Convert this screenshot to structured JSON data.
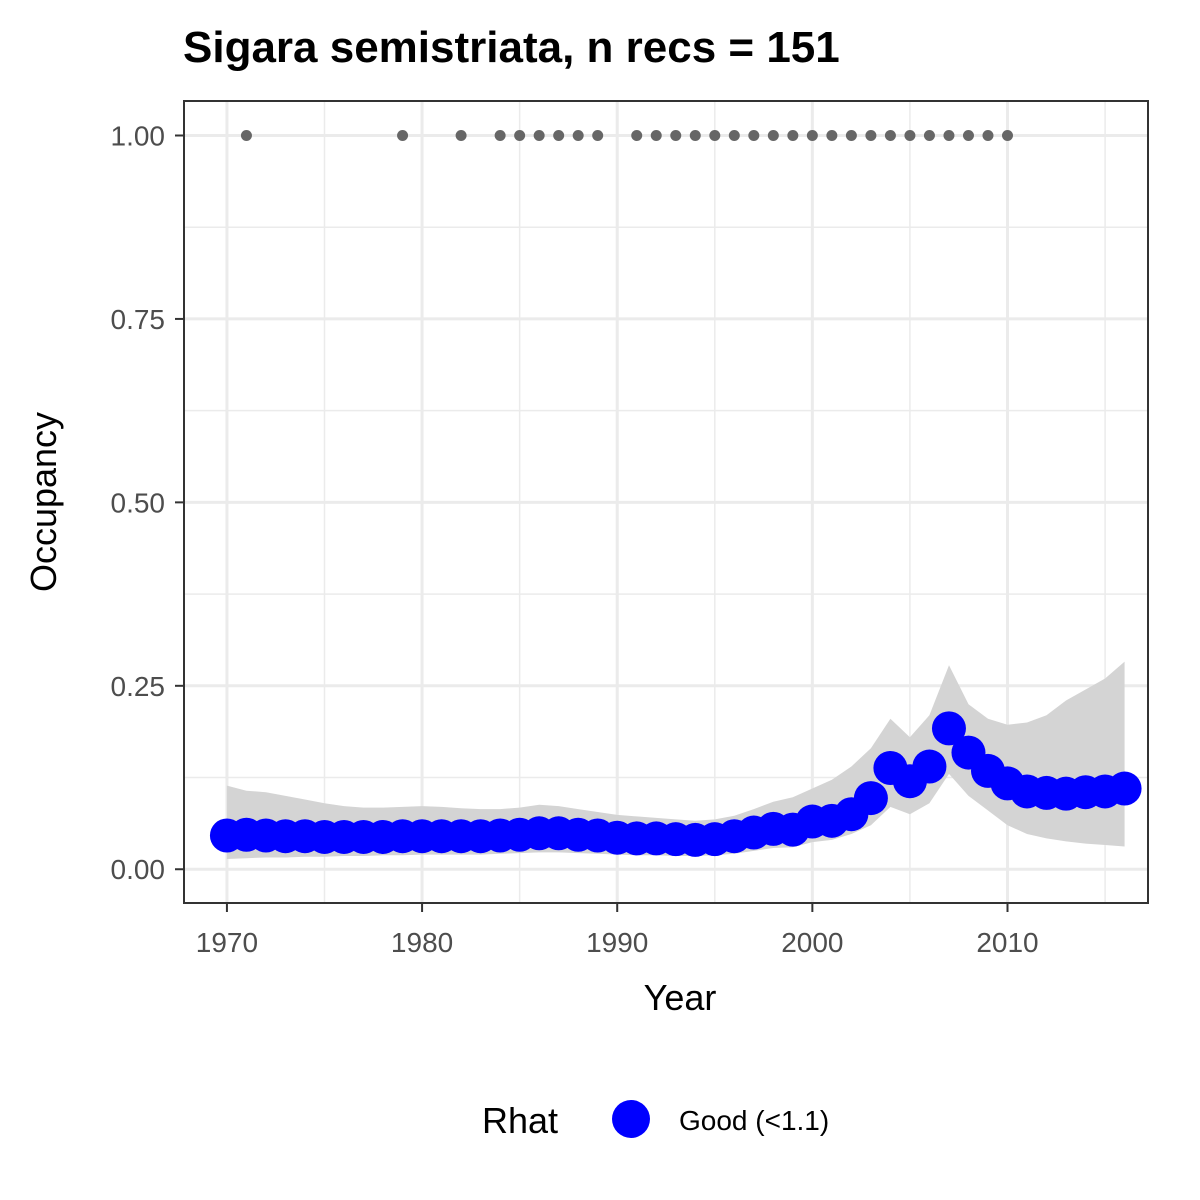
{
  "chart_data": {
    "type": "line",
    "title": "Sigara semistriata, n recs = 151",
    "xlabel": "Year",
    "ylabel": "Occupancy",
    "xlim": [
      1967.8,
      2017.2
    ],
    "ylim": [
      -0.046,
      1.047
    ],
    "x_ticks": [
      1970,
      1980,
      1990,
      2000,
      2010
    ],
    "y_ticks": [
      0.0,
      0.25,
      0.5,
      0.75,
      1.0
    ],
    "x_tick_labels": [
      "1970",
      "1980",
      "1990",
      "2000",
      "2010"
    ],
    "y_tick_labels": [
      "0.00",
      "0.25",
      "0.50",
      "0.75",
      "1.00"
    ],
    "grid": true,
    "legend": {
      "position": "bottom",
      "title": "Rhat",
      "entries": [
        {
          "label": "Good (<1.1)",
          "color": "#0000ff"
        }
      ]
    },
    "colors": {
      "series": "#0000ff",
      "ribbon": "#d4d4d4",
      "records": "#666666",
      "grid": "#ebebeb",
      "panel_border": "#333333"
    },
    "records_x": [
      1971,
      1979,
      1982,
      1984,
      1985,
      1986,
      1987,
      1988,
      1989,
      1991,
      1992,
      1993,
      1994,
      1995,
      1996,
      1997,
      1998,
      1999,
      2000,
      2001,
      2002,
      2003,
      2004,
      2005,
      2006,
      2007,
      2008,
      2009,
      2010
    ],
    "records_y": 1.0,
    "series": [
      {
        "x": [
          1970,
          1971,
          1972,
          1973,
          1974,
          1975,
          1976,
          1977,
          1978,
          1979,
          1980,
          1981,
          1982,
          1983,
          1984,
          1985,
          1986,
          1987,
          1988,
          1989,
          1990,
          1991,
          1992,
          1993,
          1994,
          1995,
          1996,
          1997,
          1998,
          1999,
          2000,
          2001,
          2002,
          2003,
          2004,
          2005,
          2006,
          2007,
          2008,
          2009,
          2010,
          2011,
          2012,
          2013,
          2014,
          2015,
          2016
        ],
        "values": [
          0.046,
          0.047,
          0.046,
          0.045,
          0.045,
          0.044,
          0.044,
          0.044,
          0.044,
          0.045,
          0.045,
          0.045,
          0.045,
          0.045,
          0.046,
          0.047,
          0.049,
          0.049,
          0.047,
          0.046,
          0.043,
          0.042,
          0.042,
          0.041,
          0.04,
          0.041,
          0.045,
          0.05,
          0.055,
          0.054,
          0.065,
          0.066,
          0.075,
          0.097,
          0.138,
          0.12,
          0.14,
          0.192,
          0.159,
          0.134,
          0.117,
          0.106,
          0.104,
          0.103,
          0.105,
          0.106,
          0.11
        ],
        "lower": [
          0.014,
          0.015,
          0.016,
          0.016,
          0.017,
          0.017,
          0.018,
          0.018,
          0.019,
          0.019,
          0.02,
          0.02,
          0.02,
          0.02,
          0.021,
          0.022,
          0.023,
          0.023,
          0.022,
          0.021,
          0.02,
          0.019,
          0.019,
          0.018,
          0.018,
          0.019,
          0.021,
          0.025,
          0.029,
          0.03,
          0.037,
          0.04,
          0.048,
          0.06,
          0.085,
          0.075,
          0.09,
          0.13,
          0.1,
          0.08,
          0.06,
          0.048,
          0.042,
          0.038,
          0.035,
          0.033,
          0.031
        ],
        "upper": [
          0.114,
          0.107,
          0.105,
          0.1,
          0.095,
          0.09,
          0.086,
          0.084,
          0.084,
          0.085,
          0.086,
          0.085,
          0.083,
          0.082,
          0.082,
          0.084,
          0.088,
          0.086,
          0.082,
          0.078,
          0.074,
          0.072,
          0.07,
          0.068,
          0.066,
          0.068,
          0.073,
          0.082,
          0.092,
          0.098,
          0.11,
          0.122,
          0.14,
          0.165,
          0.205,
          0.18,
          0.21,
          0.278,
          0.225,
          0.205,
          0.197,
          0.2,
          0.21,
          0.23,
          0.245,
          0.26,
          0.283
        ]
      }
    ]
  }
}
